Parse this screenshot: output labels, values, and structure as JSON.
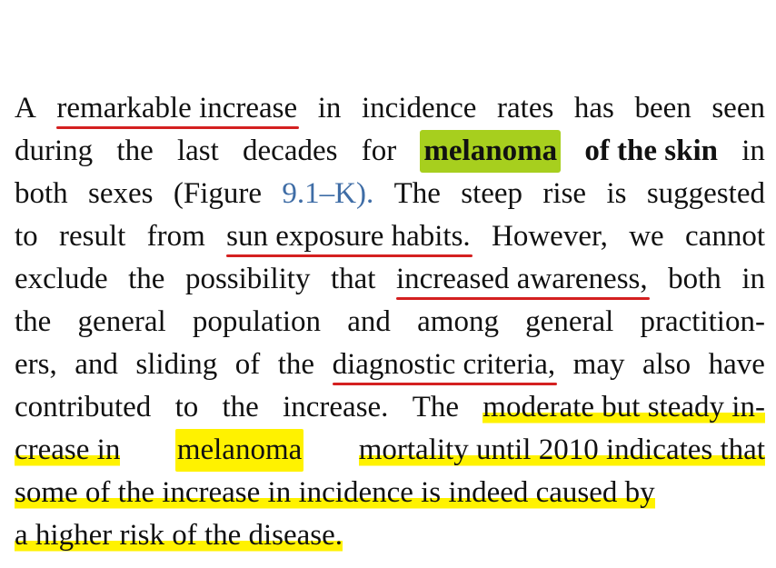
{
  "paragraph": {
    "lines": [
      [
        "A",
        "remarkable increase",
        "in",
        "incidence",
        "rates",
        "has",
        "been",
        "seen"
      ],
      [
        "during",
        "the",
        "last",
        "decades",
        "for",
        "melanoma",
        "of the skin",
        "in"
      ],
      [
        "both",
        "sexes",
        "(Figure",
        "9.1–K).",
        "The",
        "steep",
        "rise",
        "is",
        "suggested"
      ],
      [
        "to",
        "result",
        "from",
        "sun exposure habits.",
        "However,",
        "we",
        "cannot"
      ],
      [
        "exclude",
        "the",
        "possibility",
        "that",
        "increased awareness,",
        "both",
        "in"
      ],
      [
        "the",
        "general",
        "population",
        "and",
        "among",
        "general",
        "practition-"
      ],
      [
        "ers,",
        "and",
        "sliding",
        "of",
        "the",
        "diagnostic criteria,",
        "may",
        "also",
        "have"
      ],
      [
        "contributed",
        "to",
        "the",
        "increase.",
        "The",
        "moderate but steady in-"
      ],
      [
        "crease in",
        "melanoma",
        "mortality until 2010 indicates that"
      ],
      [
        "some of the increase in incidence is indeed caused by"
      ],
      [
        "a higher risk of the disease."
      ]
    ]
  },
  "annotations": {
    "highlight_colors": {
      "red_underline": "#d42020",
      "green_highlight": "#a7cf1e",
      "yellow_highlight": "#fff200"
    },
    "figure_link_color": "#3f6da6"
  }
}
